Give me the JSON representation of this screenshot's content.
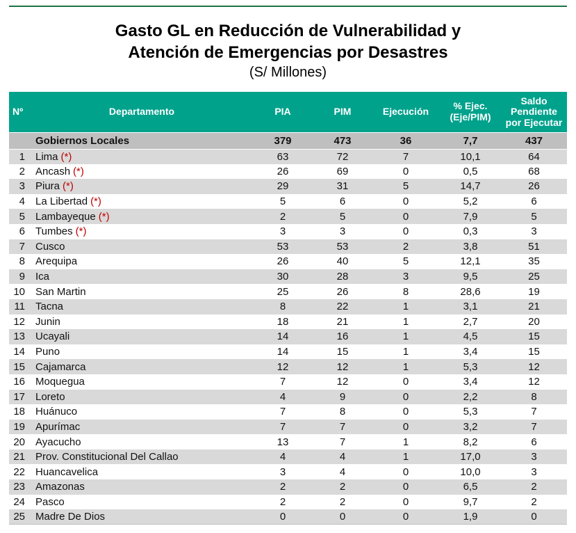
{
  "title": {
    "line1": "Gasto GL en Reducción de Vulnerabilidad y",
    "line2": "Atención de Emergencias por Desastres",
    "subtitle": "(S/ Millones)"
  },
  "colors": {
    "header_bg": "#00A28C",
    "header_text": "#FFFFFF",
    "summary_bg": "#BFBFBF",
    "row_alt": "#D9D9D9",
    "star_red": "#C00000",
    "rule_green": "#1E7345"
  },
  "chart_data": {
    "type": "table",
    "title": "Gasto GL en Reducción de Vulnerabilidad y Atención de Emergencias por Desastres",
    "units": "(S/ Millones)",
    "columns": [
      "Nº",
      "Departamento",
      "PIA",
      "PIM",
      "Ejecución",
      "% Ejec.\n(Eje/PIM)",
      "Saldo\nPendiente\npor Ejecutar"
    ],
    "summary": {
      "label": "Gobiernos Locales",
      "pia": "379",
      "pim": "473",
      "ejec": "36",
      "pct": "7,7",
      "saldo": "437"
    },
    "rows": [
      {
        "n": "1",
        "dept": "Lima",
        "star": "(*)",
        "pia": "63",
        "pim": "72",
        "ejec": "7",
        "pct": "10,1",
        "saldo": "64"
      },
      {
        "n": "2",
        "dept": "Ancash",
        "star": "(*)",
        "pia": "26",
        "pim": "69",
        "ejec": "0",
        "pct": "0,5",
        "saldo": "68"
      },
      {
        "n": "3",
        "dept": "Piura",
        "star": "(*)",
        "pia": "29",
        "pim": "31",
        "ejec": "5",
        "pct": "14,7",
        "saldo": "26"
      },
      {
        "n": "4",
        "dept": "La Libertad",
        "star": "(*)",
        "pia": "5",
        "pim": "6",
        "ejec": "0",
        "pct": "5,2",
        "saldo": "6"
      },
      {
        "n": "5",
        "dept": "Lambayeque",
        "star": "(*)",
        "pia": "2",
        "pim": "5",
        "ejec": "0",
        "pct": "7,9",
        "saldo": "5"
      },
      {
        "n": "6",
        "dept": "Tumbes",
        "star": "(*)",
        "pia": "3",
        "pim": "3",
        "ejec": "0",
        "pct": "0,3",
        "saldo": "3"
      },
      {
        "n": "7",
        "dept": "Cusco",
        "star": "",
        "pia": "53",
        "pim": "53",
        "ejec": "2",
        "pct": "3,8",
        "saldo": "51"
      },
      {
        "n": "8",
        "dept": "Arequipa",
        "star": "",
        "pia": "26",
        "pim": "40",
        "ejec": "5",
        "pct": "12,1",
        "saldo": "35"
      },
      {
        "n": "9",
        "dept": "Ica",
        "star": "",
        "pia": "30",
        "pim": "28",
        "ejec": "3",
        "pct": "9,5",
        "saldo": "25"
      },
      {
        "n": "10",
        "dept": "San Martin",
        "star": "",
        "pia": "25",
        "pim": "26",
        "ejec": "8",
        "pct": "28,6",
        "saldo": "19"
      },
      {
        "n": "11",
        "dept": "Tacna",
        "star": "",
        "pia": "8",
        "pim": "22",
        "ejec": "1",
        "pct": "3,1",
        "saldo": "21"
      },
      {
        "n": "12",
        "dept": "Junin",
        "star": "",
        "pia": "18",
        "pim": "21",
        "ejec": "1",
        "pct": "2,7",
        "saldo": "20"
      },
      {
        "n": "13",
        "dept": "Ucayali",
        "star": "",
        "pia": "14",
        "pim": "16",
        "ejec": "1",
        "pct": "4,5",
        "saldo": "15"
      },
      {
        "n": "14",
        "dept": "Puno",
        "star": "",
        "pia": "14",
        "pim": "15",
        "ejec": "1",
        "pct": "3,4",
        "saldo": "15"
      },
      {
        "n": "15",
        "dept": "Cajamarca",
        "star": "",
        "pia": "12",
        "pim": "12",
        "ejec": "1",
        "pct": "5,3",
        "saldo": "12"
      },
      {
        "n": "16",
        "dept": "Moquegua",
        "star": "",
        "pia": "7",
        "pim": "12",
        "ejec": "0",
        "pct": "3,4",
        "saldo": "12"
      },
      {
        "n": "17",
        "dept": "Loreto",
        "star": "",
        "pia": "4",
        "pim": "9",
        "ejec": "0",
        "pct": "2,2",
        "saldo": "8"
      },
      {
        "n": "18",
        "dept": "Huánuco",
        "star": "",
        "pia": "7",
        "pim": "8",
        "ejec": "0",
        "pct": "5,3",
        "saldo": "7"
      },
      {
        "n": "19",
        "dept": "Apurímac",
        "star": "",
        "pia": "7",
        "pim": "7",
        "ejec": "0",
        "pct": "3,2",
        "saldo": "7"
      },
      {
        "n": "20",
        "dept": "Ayacucho",
        "star": "",
        "pia": "13",
        "pim": "7",
        "ejec": "1",
        "pct": "8,2",
        "saldo": "6"
      },
      {
        "n": "21",
        "dept": "Prov. Constitucional Del Callao",
        "star": "",
        "pia": "4",
        "pim": "4",
        "ejec": "1",
        "pct": "17,0",
        "saldo": "3"
      },
      {
        "n": "22",
        "dept": "Huancavelica",
        "star": "",
        "pia": "3",
        "pim": "4",
        "ejec": "0",
        "pct": "10,0",
        "saldo": "3"
      },
      {
        "n": "23",
        "dept": "Amazonas",
        "star": "",
        "pia": "2",
        "pim": "2",
        "ejec": "0",
        "pct": "6,5",
        "saldo": "2"
      },
      {
        "n": "24",
        "dept": "Pasco",
        "star": "",
        "pia": "2",
        "pim": "2",
        "ejec": "0",
        "pct": "9,7",
        "saldo": "2"
      },
      {
        "n": "25",
        "dept": "Madre De Dios",
        "star": "",
        "pia": "0",
        "pim": "0",
        "ejec": "0",
        "pct": "1,9",
        "saldo": "0"
      }
    ]
  }
}
